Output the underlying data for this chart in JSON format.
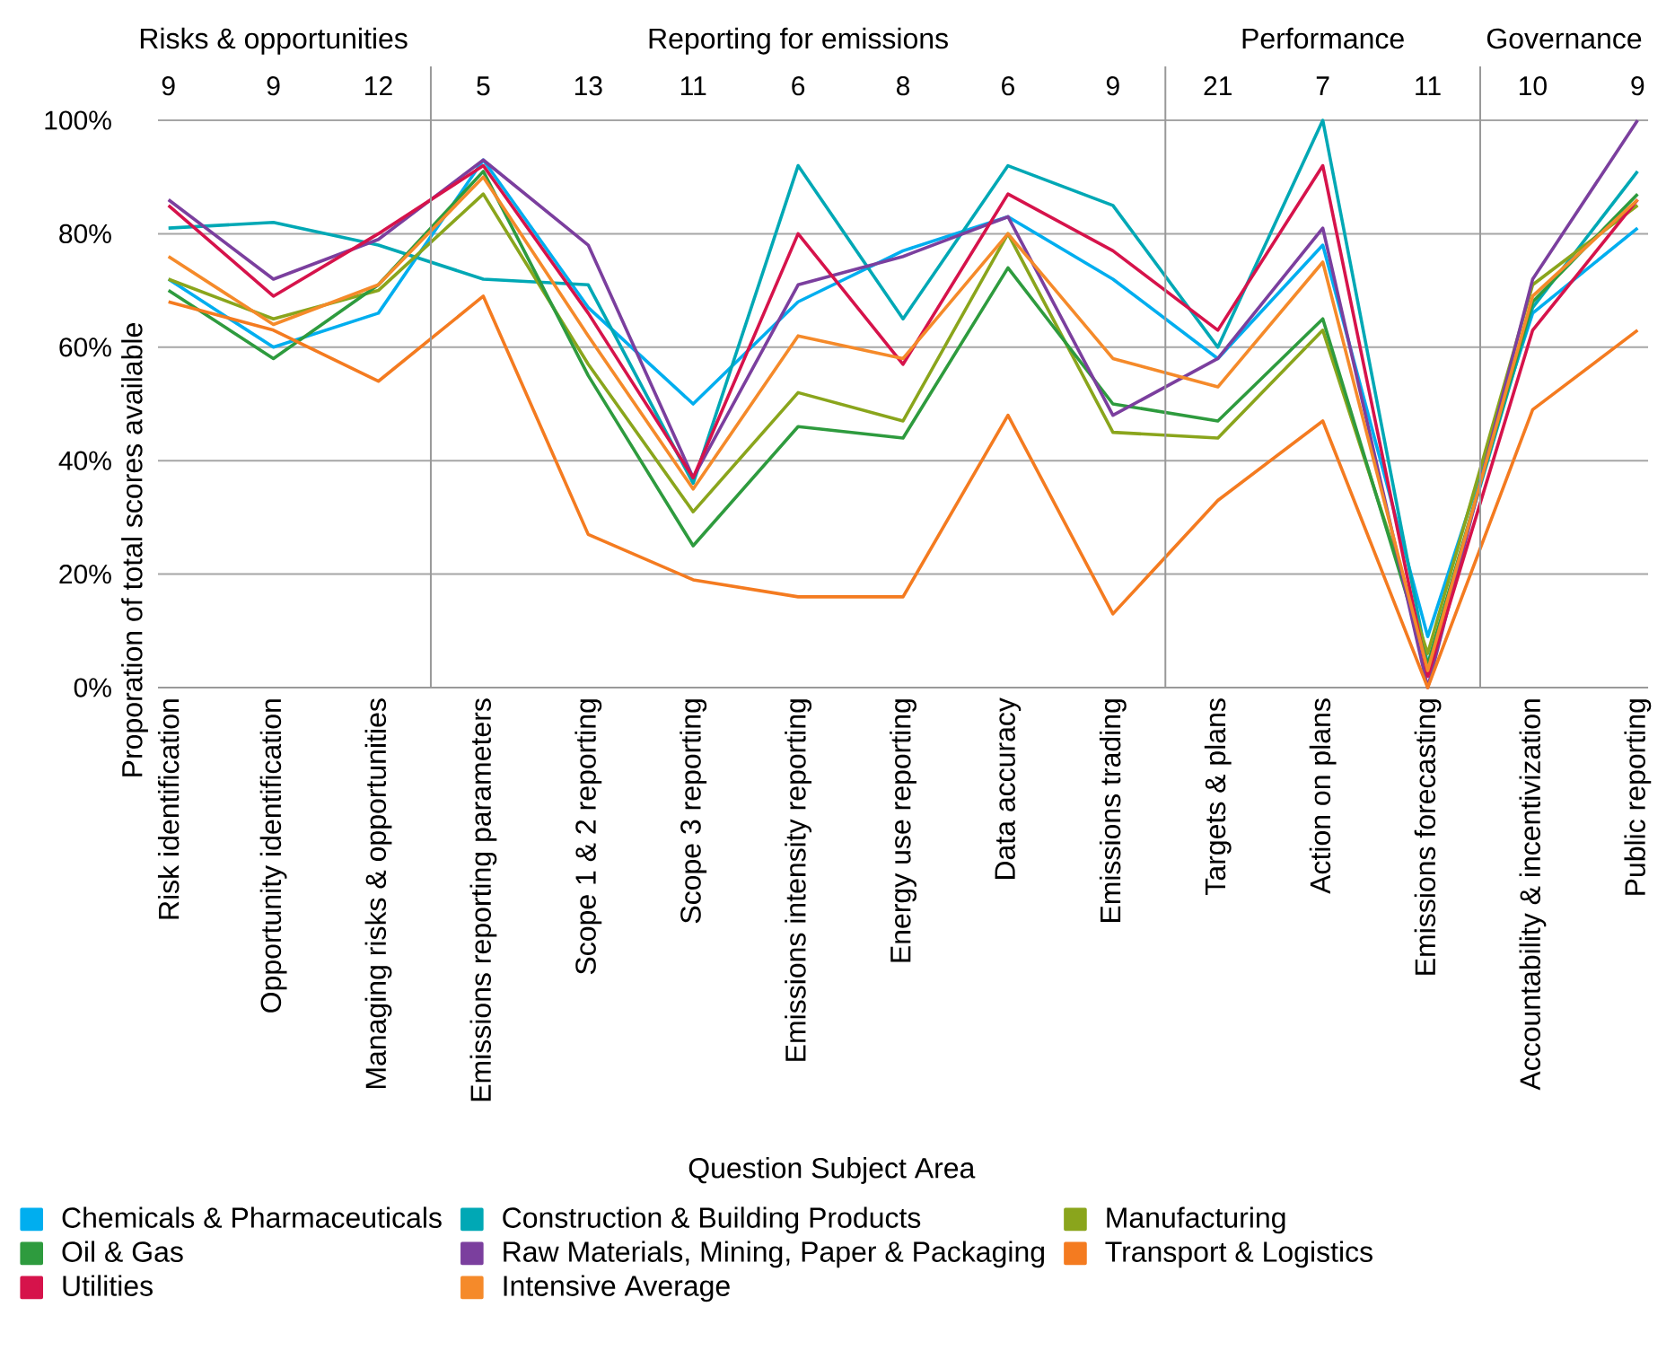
{
  "chart_data": {
    "type": "line",
    "xlabel": "Question Subject Area",
    "ylabel": "Proporation of total scores available",
    "categories": [
      "Risk identification",
      "Opportunity identification",
      "Managing risks & opportunities",
      "Emissions reporting parameters",
      "Scope 1 & 2 reporting",
      "Scope 3 reporting",
      "Emissions intensity reporting",
      "Energy use reporting",
      "Data accuracy",
      "Emissions trading",
      "Targets & plans",
      "Action on plans",
      "Emissions forecasting",
      "Accountability & incentivization",
      "Public reporting"
    ],
    "series": [
      {
        "name": "Chemicals & Pharmaceuticals",
        "color": "#00aeef",
        "values": [
          72,
          60,
          66,
          93,
          67,
          50,
          68,
          77,
          83,
          72,
          58,
          78,
          9,
          66,
          81
        ]
      },
      {
        "name": "Construction & Building Products",
        "color": "#00a8b5",
        "values": [
          81,
          82,
          78,
          72,
          71,
          36,
          92,
          65,
          92,
          85,
          60,
          100,
          4,
          67,
          91
        ]
      },
      {
        "name": "Manufacturing",
        "color": "#8aa51c",
        "values": [
          72,
          65,
          70,
          87,
          57,
          31,
          52,
          47,
          80,
          45,
          44,
          63,
          6,
          71,
          85
        ]
      },
      {
        "name": "Oil & Gas",
        "color": "#2e9b3e",
        "values": [
          70,
          58,
          71,
          91,
          55,
          25,
          46,
          44,
          74,
          50,
          47,
          65,
          4,
          68,
          87
        ]
      },
      {
        "name": "Raw Materials, Mining, Paper & Packaging",
        "color": "#7b3f9e",
        "values": [
          86,
          72,
          79,
          93,
          78,
          37,
          71,
          76,
          83,
          48,
          58,
          81,
          0,
          72,
          100
        ]
      },
      {
        "name": "Transport & Logistics",
        "color": "#f47b20",
        "values": [
          68,
          63,
          54,
          69,
          27,
          19,
          16,
          16,
          48,
          13,
          33,
          47,
          0,
          49,
          63
        ]
      },
      {
        "name": "Utilities",
        "color": "#d6134b",
        "values": [
          85,
          69,
          80,
          92,
          66,
          37,
          80,
          57,
          87,
          77,
          63,
          92,
          2,
          63,
          86
        ]
      },
      {
        "name": "Intensive Average",
        "color": "#f58a2a",
        "values": [
          76,
          64,
          71,
          90,
          62,
          35,
          62,
          58,
          80,
          58,
          53,
          75,
          3,
          69,
          86
        ]
      }
    ],
    "ylim": [
      0,
      100
    ],
    "yticks": [
      {
        "value": 0,
        "label": "0%"
      },
      {
        "value": 20,
        "label": "20%"
      },
      {
        "value": 40,
        "label": "40%"
      },
      {
        "value": 60,
        "label": "60%"
      },
      {
        "value": 80,
        "label": "80%"
      },
      {
        "value": 100,
        "label": "100%"
      }
    ],
    "annotations": [
      "Risks & opportunities",
      "Reporting for emissions",
      "Performance",
      "Governance",
      "9",
      "9",
      "12",
      "5",
      "13",
      "11",
      "6",
      "8",
      "6",
      "9",
      "21",
      "7",
      "11",
      "10",
      "9"
    ],
    "grid": "y",
    "legend": "bottom",
    "line_style": "solid"
  }
}
